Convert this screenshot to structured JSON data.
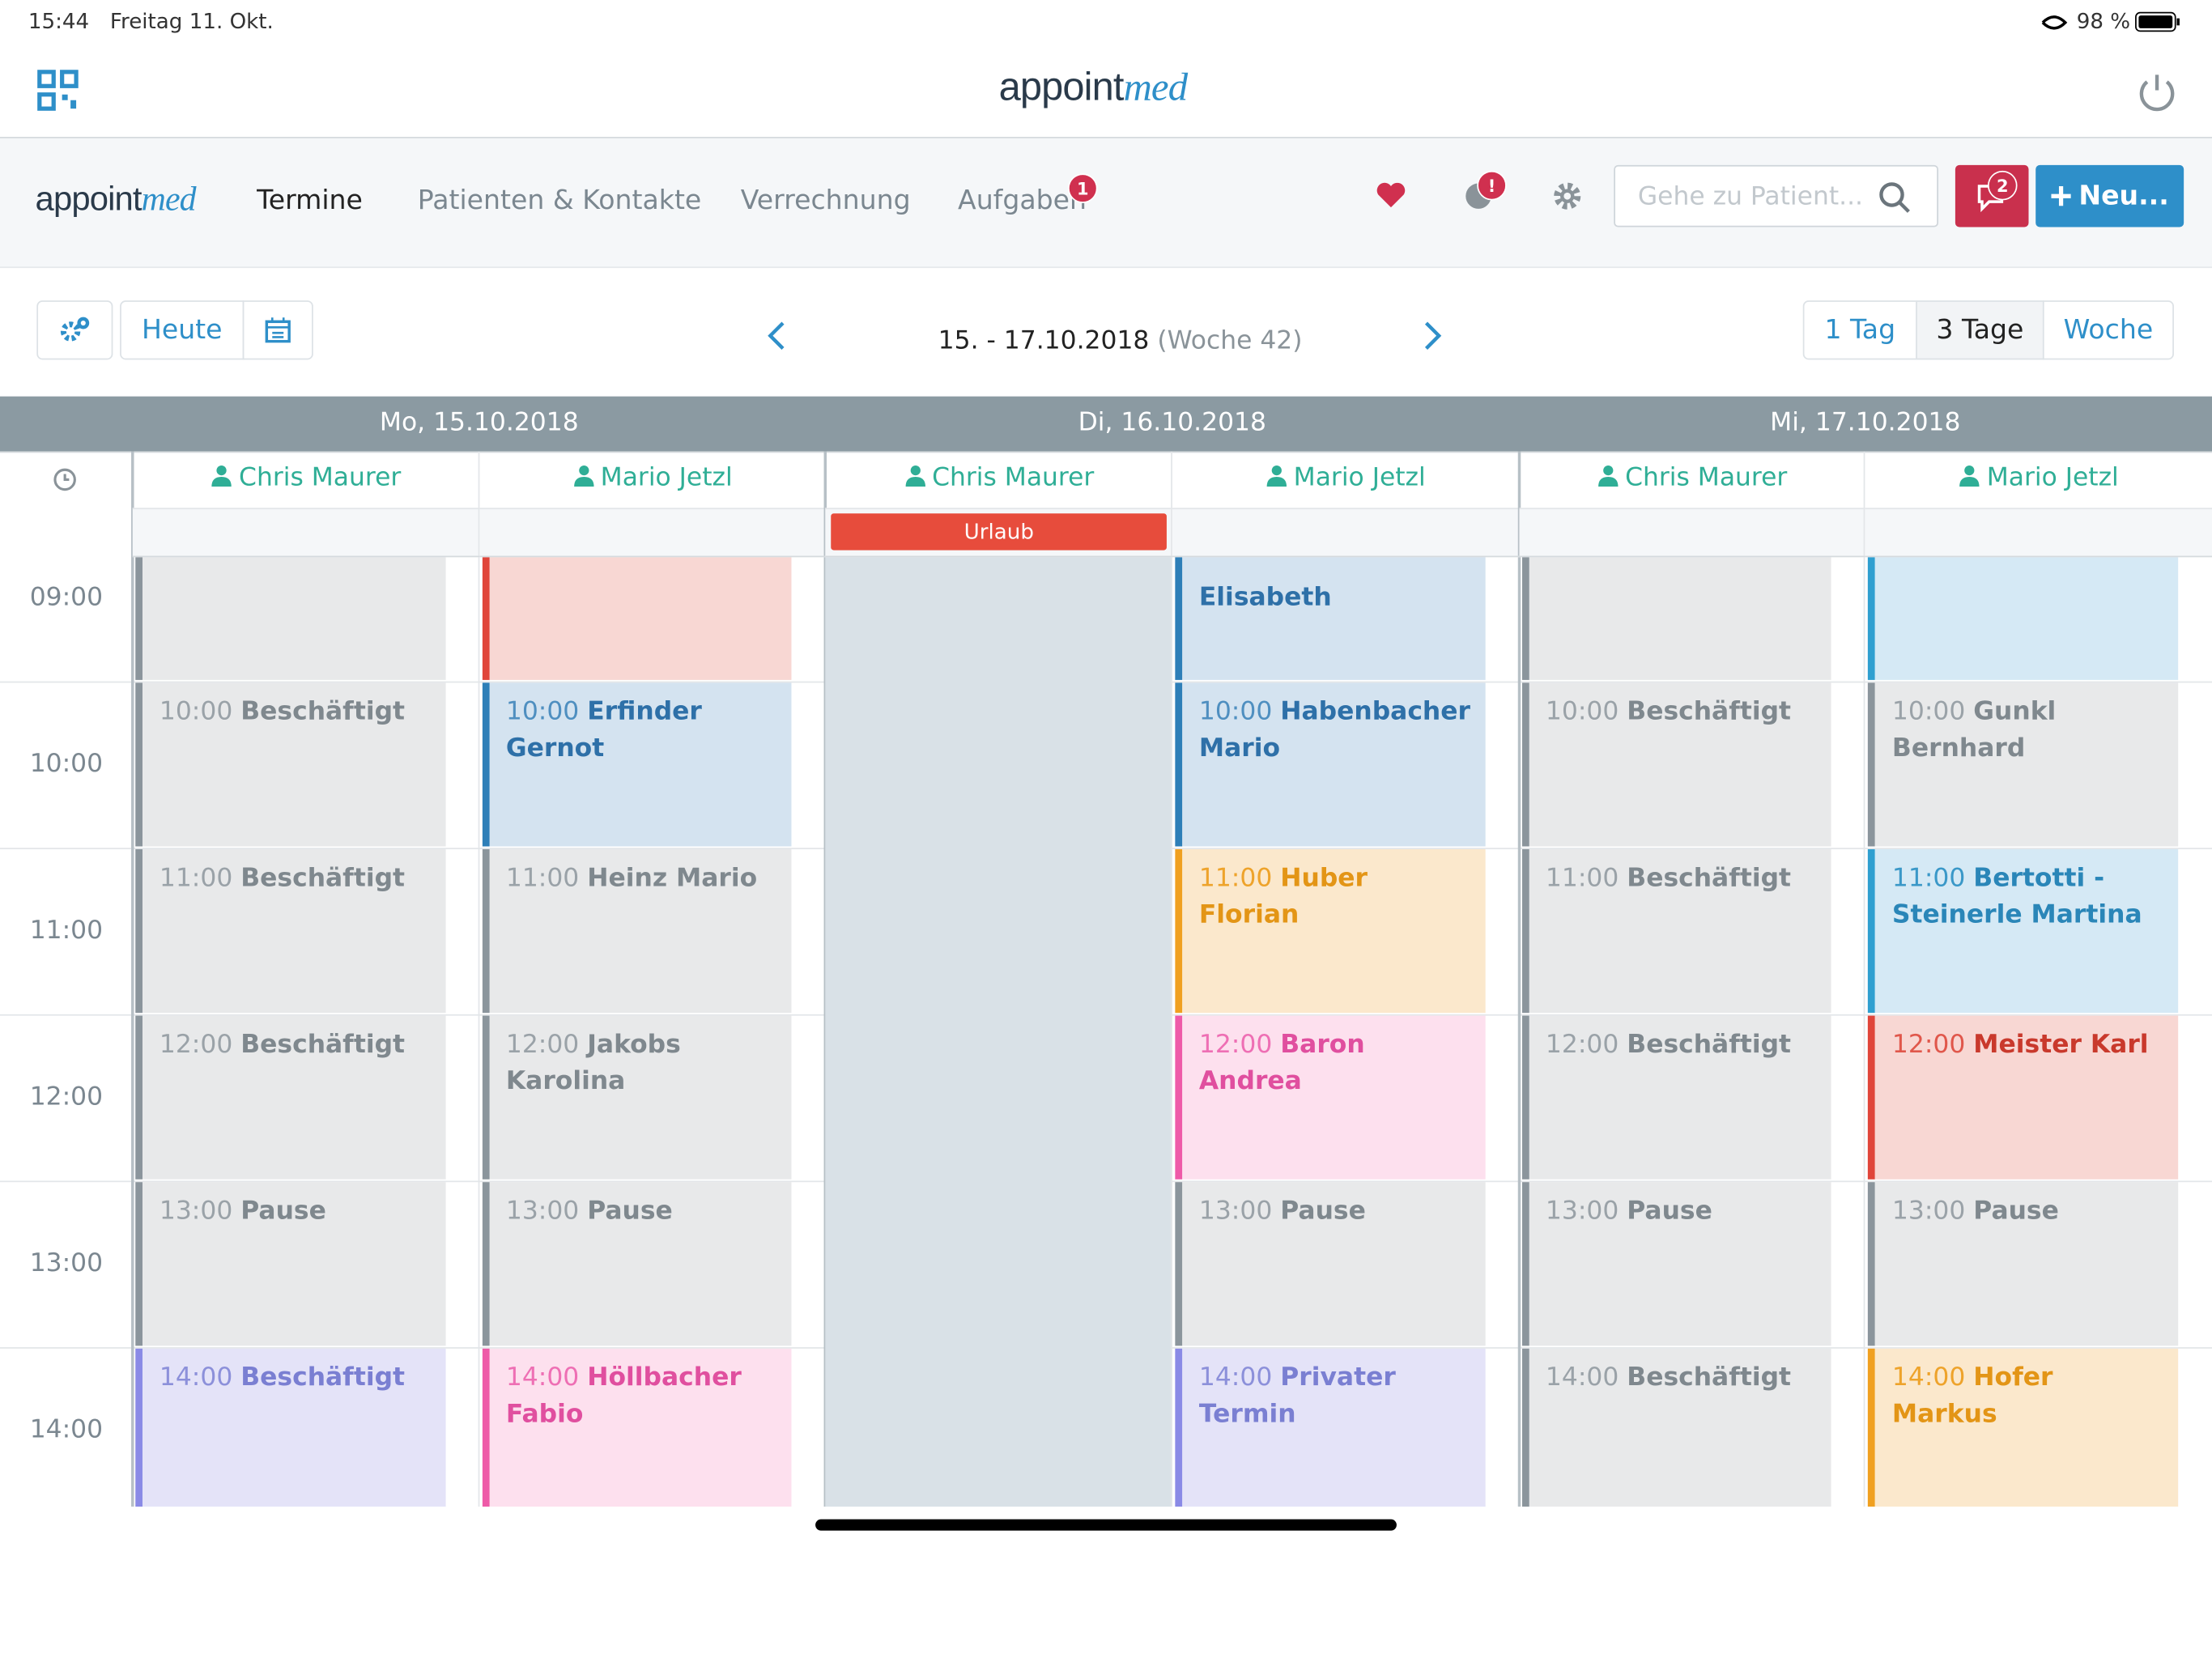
{
  "status_bar": {
    "time": "15:44",
    "date": "Freitag 11. Okt.",
    "battery": "98 %"
  },
  "header": {
    "logo_main": "appoint",
    "logo_accent": "med"
  },
  "nav": {
    "items": [
      "Termine",
      "Patienten & Kontakte",
      "Verrechnung",
      "Aufgaben"
    ],
    "tasks_badge": "1",
    "info_badge": "!",
    "search_placeholder": "Gehe zu Patient...",
    "messages_badge": "2",
    "new_button": "Neu..."
  },
  "toolbar": {
    "today": "Heute",
    "range": "15. - 17.10.2018",
    "week": "(Woche 42)",
    "views": [
      "1 Tag",
      "3 Tage",
      "Woche"
    ]
  },
  "calendar": {
    "hours": [
      "09:00",
      "10:00",
      "11:00",
      "12:00",
      "13:00",
      "14:00"
    ],
    "days": [
      {
        "label": "Mo, 15.10.2018",
        "columns": [
          {
            "resource": "Chris Maurer",
            "appointments": [
              {
                "color": "gray"
              },
              {
                "time": "10:00",
                "title": "Beschäftigt",
                "color": "gray"
              },
              {
                "time": "11:00",
                "title": "Beschäftigt",
                "color": "gray"
              },
              {
                "time": "12:00",
                "title": "Beschäftigt",
                "color": "gray"
              },
              {
                "time": "13:00",
                "title": "Pause",
                "color": "gray"
              },
              {
                "time": "14:00",
                "title": "Beschäftigt",
                "color": "lavender"
              }
            ]
          },
          {
            "resource": "Mario Jetzl",
            "appointments": [
              {
                "color": "red"
              },
              {
                "time": "10:00",
                "title": "Erfinder Gernot",
                "color": "blue"
              },
              {
                "time": "11:00",
                "title": "Heinz Mario",
                "color": "gray"
              },
              {
                "time": "12:00",
                "title": "Jakobs Karolina",
                "color": "gray"
              },
              {
                "time": "13:00",
                "title": "Pause",
                "color": "gray"
              },
              {
                "time": "14:00",
                "title": "Höllbacher Fabio",
                "color": "pink"
              }
            ]
          }
        ]
      },
      {
        "label": "Di, 16.10.2018",
        "columns": [
          {
            "resource": "Chris Maurer",
            "allday": "Urlaub",
            "appointments": []
          },
          {
            "resource": "Mario Jetzl",
            "appointments": [
              {
                "title": "Elisabeth",
                "color": "blue"
              },
              {
                "time": "10:00",
                "title": "Habenbacher Mario",
                "color": "blue"
              },
              {
                "time": "11:00",
                "title": "Huber Florian",
                "color": "orange"
              },
              {
                "time": "12:00",
                "title": "Baron Andrea",
                "color": "pink"
              },
              {
                "time": "13:00",
                "title": "Pause",
                "color": "gray"
              },
              {
                "time": "14:00",
                "title": "Privater Termin",
                "color": "lavender"
              }
            ]
          }
        ]
      },
      {
        "label": "Mi, 17.10.2018",
        "columns": [
          {
            "resource": "Chris Maurer",
            "appointments": [
              {
                "color": "gray"
              },
              {
                "time": "10:00",
                "title": "Beschäftigt",
                "color": "gray"
              },
              {
                "time": "11:00",
                "title": "Beschäftigt",
                "color": "gray"
              },
              {
                "time": "12:00",
                "title": "Beschäftigt",
                "color": "gray"
              },
              {
                "time": "13:00",
                "title": "Pause",
                "color": "gray"
              },
              {
                "time": "14:00",
                "title": "Beschäftigt",
                "color": "gray"
              }
            ]
          },
          {
            "resource": "Mario Jetzl",
            "appointments": [
              {
                "color": "lightblue"
              },
              {
                "time": "10:00",
                "title": "Gunkl Bernhard",
                "color": "gray"
              },
              {
                "time": "11:00",
                "title": "Bertotti - Steinerle Martina",
                "color": "lightblue"
              },
              {
                "time": "12:00",
                "title": "Meister Karl",
                "color": "red"
              },
              {
                "time": "13:00",
                "title": "Pause",
                "color": "gray"
              },
              {
                "time": "14:00",
                "title": "Hofer Markus",
                "color": "orange"
              }
            ]
          }
        ]
      }
    ]
  }
}
